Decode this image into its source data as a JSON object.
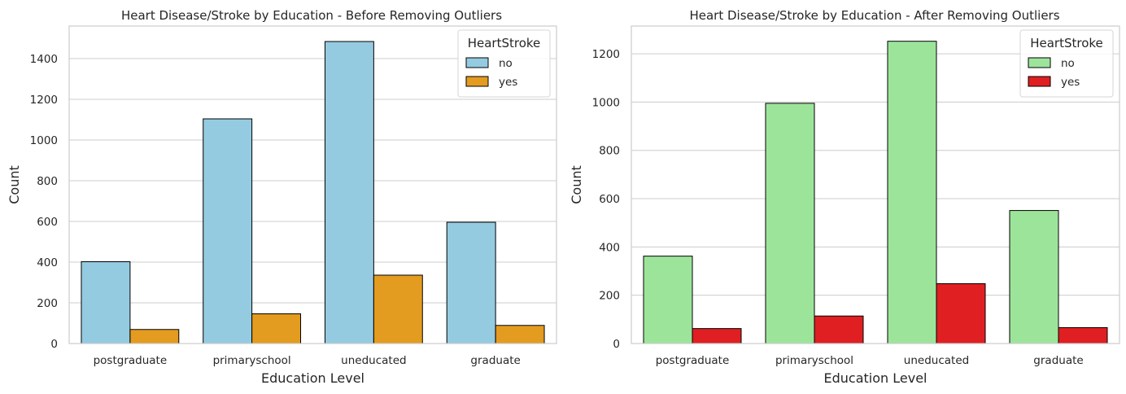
{
  "chart_data": [
    {
      "type": "bar",
      "title": "Heart Disease/Stroke by Education - Before Removing Outliers",
      "xlabel": "Education Level",
      "ylabel": "Count",
      "categories": [
        "postgraduate",
        "primaryschool",
        "uneducated",
        "graduate"
      ],
      "series": [
        {
          "name": "no",
          "values": [
            402,
            1104,
            1484,
            596
          ],
          "color": "#95cbe0"
        },
        {
          "name": "yes",
          "values": [
            69,
            146,
            336,
            89
          ],
          "color": "#e39b20"
        }
      ],
      "ylim": [
        0,
        1560
      ],
      "yticks": [
        0,
        200,
        400,
        600,
        800,
        1000,
        1200,
        1400
      ],
      "legend": {
        "title": "HeartStroke",
        "placement": "top-right"
      },
      "grid": "y"
    },
    {
      "type": "bar",
      "title": "Heart Disease/Stroke by Education - After Removing Outliers",
      "xlabel": "Education Level",
      "ylabel": "Count",
      "categories": [
        "postgraduate",
        "primaryschool",
        "uneducated",
        "graduate"
      ],
      "series": [
        {
          "name": "no",
          "values": [
            362,
            995,
            1252,
            551
          ],
          "color": "#9de49b"
        },
        {
          "name": "yes",
          "values": [
            62,
            114,
            248,
            66
          ],
          "color": "#e01f22"
        }
      ],
      "ylim": [
        0,
        1315
      ],
      "yticks": [
        0,
        200,
        400,
        600,
        800,
        1000,
        1200
      ],
      "legend": {
        "title": "HeartStroke",
        "placement": "top-right"
      },
      "grid": "y"
    }
  ]
}
